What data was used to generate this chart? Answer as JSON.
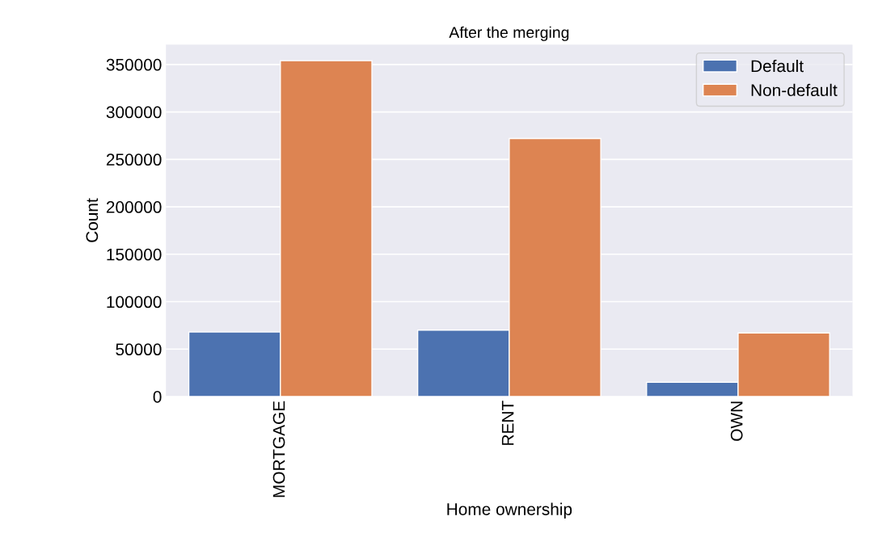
{
  "chart_data": {
    "type": "bar",
    "title": "After the merging",
    "xlabel": "Home ownership",
    "ylabel": "Count",
    "categories": [
      "MORTGAGE",
      "RENT",
      "OWN"
    ],
    "series": [
      {
        "name": "Default",
        "color": "#4c72b0",
        "values": [
          68000,
          70000,
          15000
        ]
      },
      {
        "name": "Non-default",
        "color": "#dd8452",
        "values": [
          354000,
          272000,
          67000
        ]
      }
    ],
    "ylim": [
      0,
      371000
    ],
    "yticks": [
      0,
      50000,
      100000,
      150000,
      200000,
      250000,
      300000,
      350000
    ],
    "grid": "y",
    "legend": "top right"
  }
}
